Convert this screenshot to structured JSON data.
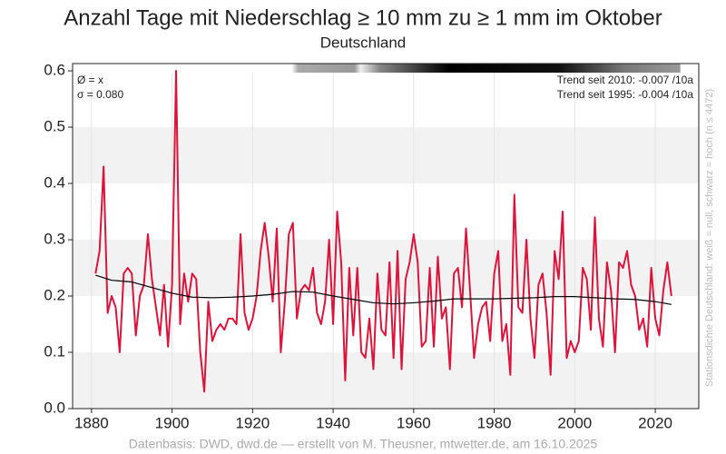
{
  "chart_data": {
    "type": "line",
    "title": "Anzahl Tage mit Niederschlag ≥ 10 mm zu ≥ 1 mm im Oktober",
    "subtitle": "Deutschland",
    "annotations": [
      "Ø = x",
      "σ = 0.080",
      "Trend seit 2010: -0.007 /10a",
      "Trend seit 1995: -0.004 /10a"
    ],
    "side_label": "Stationsdichte Deutschland: weiß = null, schwarz = hoch (n ≤ 4472)",
    "footer": "Datenbasis: DWD, dwd.de — erstellt von M. Theusner, mtwetter.de, am 16.10.2025",
    "xlim": [
      1875.3,
      2030.8
    ],
    "xticks": [
      1880,
      1900,
      1920,
      1940,
      1960,
      1980,
      2000,
      2020
    ],
    "ylim": [
      0,
      0.613
    ],
    "yticks": [
      {
        "value": 0,
        "label": "0.0"
      },
      0.1,
      0.2,
      0.3,
      0.4,
      0.5,
      0.6
    ],
    "series": [
      {
        "color": "#dc143c",
        "x": [
          1881,
          1882,
          1883,
          1884,
          1885,
          1886,
          1887,
          1888,
          1889,
          1890,
          1891,
          1892,
          1893,
          1894,
          1895,
          1896,
          1897,
          1898,
          1899,
          1900,
          1901,
          1902,
          1903,
          1904,
          1905,
          1906,
          1907,
          1908,
          1909,
          1910,
          1911,
          1912,
          1913,
          1914,
          1915,
          1916,
          1917,
          1918,
          1919,
          1920,
          1921,
          1922,
          1923,
          1924,
          1925,
          1926,
          1927,
          1928,
          1929,
          1930,
          1931,
          1932,
          1933,
          1934,
          1935,
          1936,
          1937,
          1938,
          1939,
          1940,
          1941,
          1942,
          1943,
          1944,
          1945,
          1946,
          1947,
          1948,
          1949,
          1950,
          1951,
          1952,
          1953,
          1954,
          1955,
          1956,
          1957,
          1958,
          1959,
          1960,
          1961,
          1962,
          1963,
          1964,
          1965,
          1966,
          1967,
          1968,
          1969,
          1970,
          1971,
          1972,
          1973,
          1974,
          1975,
          1976,
          1977,
          1978,
          1979,
          1980,
          1981,
          1982,
          1983,
          1984,
          1985,
          1986,
          1987,
          1988,
          1989,
          1990,
          1991,
          1992,
          1993,
          1994,
          1995,
          1996,
          1997,
          1998,
          1999,
          2000,
          2001,
          2002,
          2003,
          2004,
          2005,
          2006,
          2007,
          2008,
          2009,
          2010,
          2011,
          2012,
          2013,
          2014,
          2015,
          2016,
          2017,
          2018,
          2019,
          2020,
          2021,
          2022,
          2023,
          2024
        ],
        "values": [
          0.24,
          0.28,
          0.43,
          0.17,
          0.2,
          0.18,
          0.1,
          0.24,
          0.25,
          0.24,
          0.13,
          0.2,
          0.22,
          0.31,
          0.23,
          0.18,
          0.13,
          0.22,
          0.11,
          0.22,
          0.6,
          0.15,
          0.24,
          0.19,
          0.24,
          0.23,
          0.1,
          0.03,
          0.19,
          0.12,
          0.14,
          0.15,
          0.14,
          0.16,
          0.16,
          0.15,
          0.31,
          0.17,
          0.14,
          0.16,
          0.2,
          0.28,
          0.33,
          0.27,
          0.19,
          0.32,
          0.1,
          0.19,
          0.31,
          0.33,
          0.16,
          0.21,
          0.22,
          0.21,
          0.25,
          0.17,
          0.15,
          0.19,
          0.3,
          0.15,
          0.35,
          0.26,
          0.05,
          0.25,
          0.13,
          0.25,
          0.1,
          0.09,
          0.16,
          0.07,
          0.24,
          0.14,
          0.13,
          0.26,
          0.09,
          0.28,
          0.07,
          0.23,
          0.26,
          0.31,
          0.26,
          0.11,
          0.12,
          0.25,
          0.11,
          0.27,
          0.16,
          0.18,
          0.07,
          0.24,
          0.25,
          0.18,
          0.32,
          0.21,
          0.09,
          0.15,
          0.18,
          0.19,
          0.12,
          0.24,
          0.28,
          0.12,
          0.15,
          0.06,
          0.38,
          0.18,
          0.17,
          0.3,
          0.16,
          0.09,
          0.22,
          0.24,
          0.17,
          0.06,
          0.28,
          0.23,
          0.35,
          0.09,
          0.12,
          0.1,
          0.12,
          0.25,
          0.23,
          0.14,
          0.34,
          0.16,
          0.11,
          0.26,
          0.21,
          0.1,
          0.26,
          0.25,
          0.28,
          0.22,
          0.2,
          0.14,
          0.16,
          0.11,
          0.25,
          0.16,
          0.13,
          0.21,
          0.26,
          0.2
        ]
      },
      {
        "color": "#000000",
        "x": [
          1881,
          1885,
          1890,
          1895,
          1900,
          1905,
          1910,
          1915,
          1920,
          1925,
          1930,
          1935,
          1940,
          1945,
          1950,
          1955,
          1960,
          1965,
          1970,
          1975,
          1980,
          1985,
          1990,
          1995,
          2000,
          2005,
          2010,
          2015,
          2020,
          2024
        ],
        "values": [
          0.237,
          0.228,
          0.225,
          0.215,
          0.205,
          0.198,
          0.197,
          0.198,
          0.2,
          0.203,
          0.208,
          0.207,
          0.2,
          0.194,
          0.188,
          0.186,
          0.188,
          0.191,
          0.195,
          0.195,
          0.195,
          0.196,
          0.197,
          0.199,
          0.199,
          0.197,
          0.195,
          0.194,
          0.19,
          0.185
        ]
      }
    ]
  }
}
